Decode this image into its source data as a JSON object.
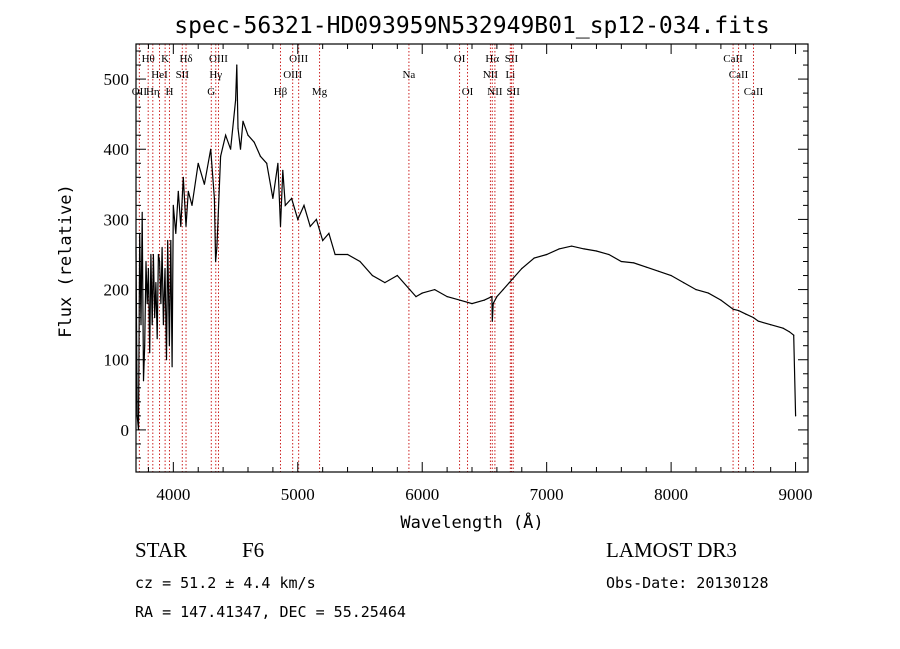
{
  "chart_data": {
    "type": "line",
    "title": "spec-56321-HD093959N532949B01_sp12-034.fits",
    "xlabel": "Wavelength (Å)",
    "ylabel": "Flux (relative)",
    "xlim": [
      3700,
      9100
    ],
    "ylim": [
      -60,
      550
    ],
    "x_ticks": [
      4000,
      5000,
      6000,
      7000,
      8000,
      9000
    ],
    "y_ticks": [
      0,
      100,
      200,
      300,
      400,
      500
    ],
    "series": [
      {
        "name": "flux",
        "x": [
          3700,
          3710,
          3720,
          3730,
          3740,
          3750,
          3760,
          3770,
          3780,
          3790,
          3800,
          3810,
          3820,
          3830,
          3840,
          3850,
          3860,
          3870,
          3880,
          3890,
          3900,
          3910,
          3920,
          3933,
          3945,
          3955,
          3968,
          3980,
          3990,
          4000,
          4020,
          4040,
          4060,
          4080,
          4102,
          4120,
          4150,
          4200,
          4250,
          4300,
          4330,
          4340,
          4350,
          4380,
          4420,
          4460,
          4500,
          4510,
          4520,
          4540,
          4560,
          4600,
          4650,
          4700,
          4750,
          4800,
          4840,
          4861,
          4880,
          4900,
          4950,
          5000,
          5050,
          5100,
          5150,
          5200,
          5250,
          5300,
          5400,
          5500,
          5600,
          5700,
          5800,
          5900,
          5950,
          6000,
          6100,
          6200,
          6300,
          6400,
          6500,
          6560,
          6563,
          6570,
          6600,
          6650,
          6700,
          6800,
          6900,
          7000,
          7100,
          7200,
          7300,
          7400,
          7500,
          7600,
          7700,
          7800,
          7900,
          8000,
          8100,
          8200,
          8300,
          8400,
          8498,
          8542,
          8600,
          8662,
          8700,
          8800,
          8900,
          8950,
          8985,
          9000
        ],
        "y": [
          260,
          20,
          0,
          280,
          150,
          310,
          70,
          120,
          240,
          180,
          230,
          110,
          250,
          150,
          250,
          160,
          210,
          130,
          250,
          240,
          180,
          260,
          150,
          230,
          100,
          270,
          120,
          270,
          90,
          320,
          280,
          340,
          290,
          360,
          290,
          340,
          320,
          380,
          350,
          400,
          330,
          240,
          260,
          390,
          420,
          400,
          470,
          520,
          430,
          400,
          440,
          420,
          410,
          390,
          380,
          330,
          380,
          290,
          370,
          320,
          330,
          300,
          320,
          290,
          300,
          270,
          280,
          250,
          250,
          240,
          220,
          210,
          220,
          200,
          190,
          195,
          200,
          190,
          185,
          180,
          185,
          190,
          155,
          180,
          190,
          200,
          210,
          230,
          245,
          250,
          258,
          262,
          258,
          255,
          250,
          240,
          238,
          232,
          226,
          220,
          210,
          200,
          195,
          185,
          172,
          170,
          165,
          160,
          155,
          150,
          145,
          140,
          135,
          20
        ]
      }
    ],
    "spectral_lines": [
      {
        "name": "Hθ",
        "x": 3798,
        "row": 1
      },
      {
        "name": "OII",
        "x": 3727,
        "row": 3
      },
      {
        "name": "Hη",
        "x": 3835,
        "row": 3
      },
      {
        "name": "HeI",
        "x": 3889,
        "row": 2
      },
      {
        "name": "K",
        "x": 3934,
        "row": 1
      },
      {
        "name": "H",
        "x": 3969,
        "row": 3
      },
      {
        "name": "SII",
        "x": 4072,
        "row": 2
      },
      {
        "name": "Hδ",
        "x": 4102,
        "row": 1
      },
      {
        "name": "G",
        "x": 4305,
        "row": 3
      },
      {
        "name": "OIII",
        "x": 4363,
        "row": 1
      },
      {
        "name": "Hγ",
        "x": 4341,
        "row": 2
      },
      {
        "name": "Hβ",
        "x": 4861,
        "row": 3
      },
      {
        "name": "OIII",
        "x": 5007,
        "row": 1
      },
      {
        "name": "OIII",
        "x": 4959,
        "row": 2
      },
      {
        "name": "Mg",
        "x": 5175,
        "row": 3
      },
      {
        "name": "Na",
        "x": 5893,
        "row": 2
      },
      {
        "name": "OI",
        "x": 6300,
        "row": 1
      },
      {
        "name": "OI",
        "x": 6364,
        "row": 3
      },
      {
        "name": "Hα",
        "x": 6563,
        "row": 1
      },
      {
        "name": "NII",
        "x": 6548,
        "row": 2
      },
      {
        "name": "NII",
        "x": 6584,
        "row": 3
      },
      {
        "name": "SII",
        "x": 6717,
        "row": 1
      },
      {
        "name": "Li",
        "x": 6708,
        "row": 2
      },
      {
        "name": "SII",
        "x": 6731,
        "row": 3
      },
      {
        "name": "CaII",
        "x": 8498,
        "row": 1
      },
      {
        "name": "CaII",
        "x": 8542,
        "row": 2
      },
      {
        "name": "CaII",
        "x": 8662,
        "row": 3
      }
    ]
  },
  "info": {
    "class": "STAR",
    "subclass": "F6",
    "cz": "cz = 51.2 ± 4.4 km/s",
    "radec": "RA = 147.41347, DEC =  55.25464",
    "survey": "LAMOST DR3",
    "obsdate": "Obs-Date: 20130128"
  },
  "colors": {
    "line_marker": "#cc2222",
    "spectrum": "#000000",
    "axis": "#000000"
  }
}
